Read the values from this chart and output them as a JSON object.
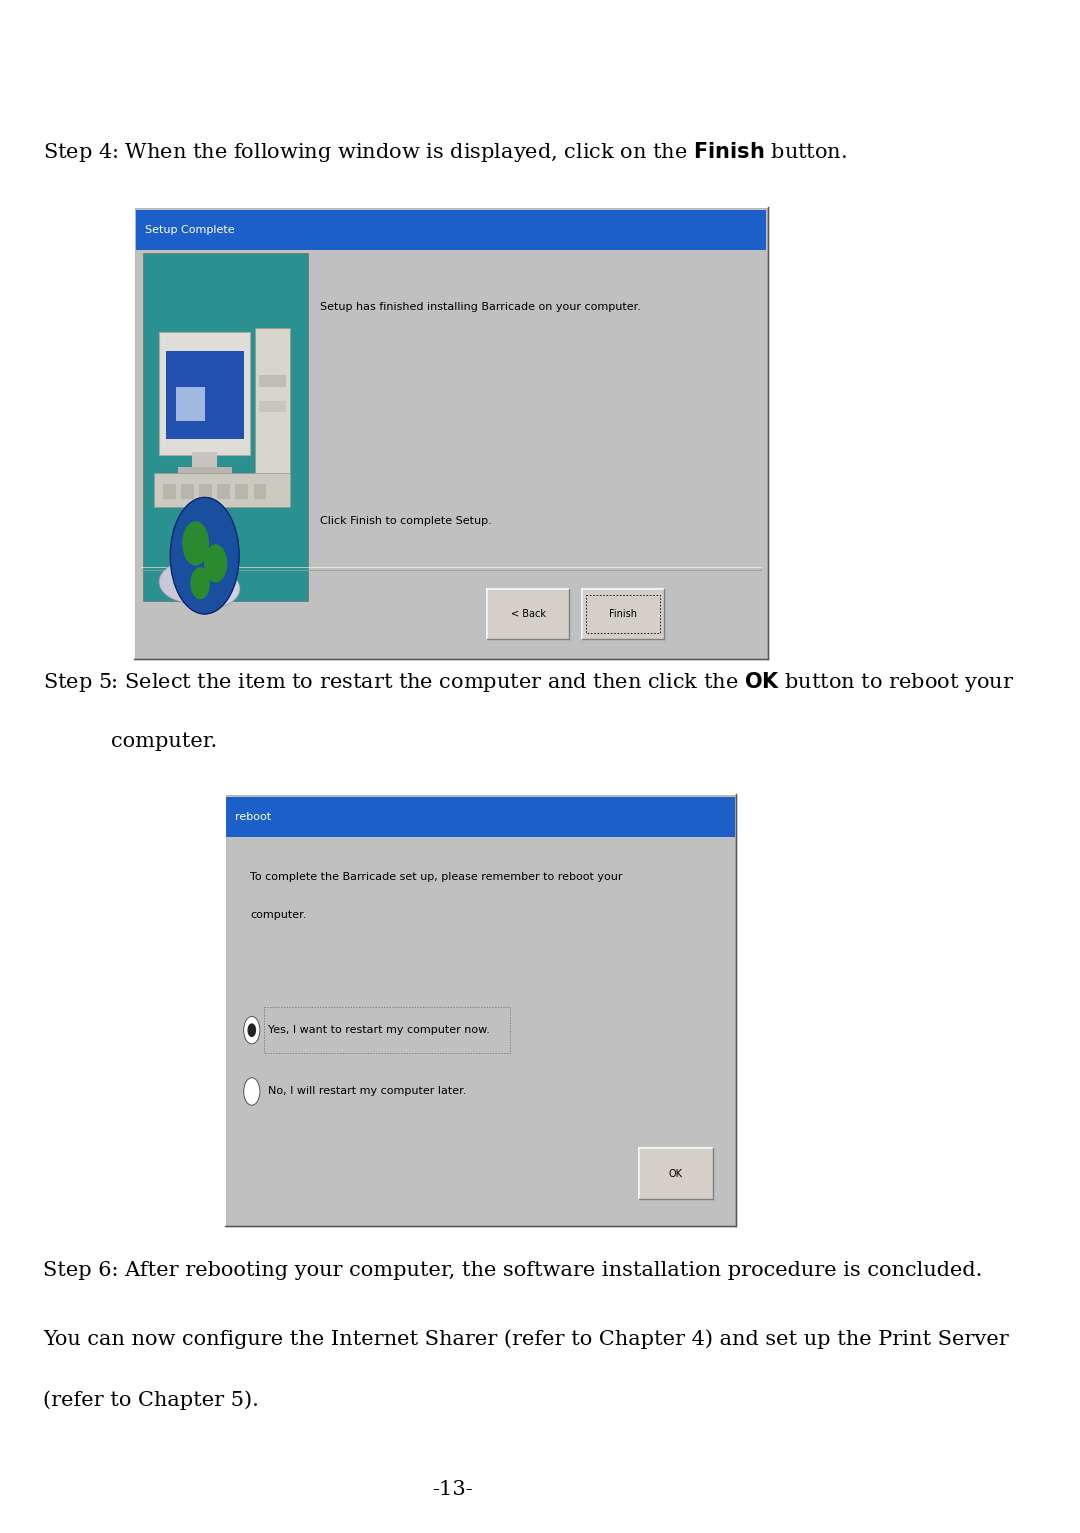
{
  "bg_color": "#ffffff",
  "text_color": "#000000",
  "step4_text_normal": "Step 4: When the following window is displayed, click on the ",
  "step4_text_bold": "Finish",
  "step4_text_end": " button.",
  "step5_text_line1_normal": "Step 5: Select the item to restart the computer and then click the ",
  "step5_text_line1_bold": "OK",
  "step5_text_line1_end": " button to reboot your",
  "step5_text_line2": "computer.",
  "step6_text": "Step 6: After rebooting your computer, the software installation procedure is concluded.",
  "para_text_line1": "You can now configure the Internet Sharer (refer to Chapter 4) and set up the Print Server",
  "para_text_line2": "(refer to Chapter 5).",
  "page_number": "-13-",
  "win1_title": "Setup Complete",
  "win1_title_bg": "#1c5fc8",
  "win1_title_text_color": "#ffffff",
  "win1_body_bg": "#c0c0c0",
  "win1_text1": "Setup has finished installing Barricade on your computer.",
  "win1_text2": "Click Finish to complete Setup.",
  "win1_btn1": "< Back",
  "win1_btn2": "Finish",
  "win1_teal_bg": "#2a9090",
  "win2_title": "reboot",
  "win2_title_bg": "#1c5fc8",
  "win2_title_text_color": "#ffffff",
  "win2_body_bg": "#c0c0c0",
  "win2_text1a": "To complete the Barricade set up, please remember to reboot your",
  "win2_text1b": "computer.",
  "win2_radio1": "Yes, I want to restart my computer now.",
  "win2_radio2": "No, I will restart my computer later.",
  "win2_btn": "OK",
  "font_size_body": 15,
  "font_size_win_title": 8,
  "font_size_win_body": 8,
  "font_size_btn": 7
}
